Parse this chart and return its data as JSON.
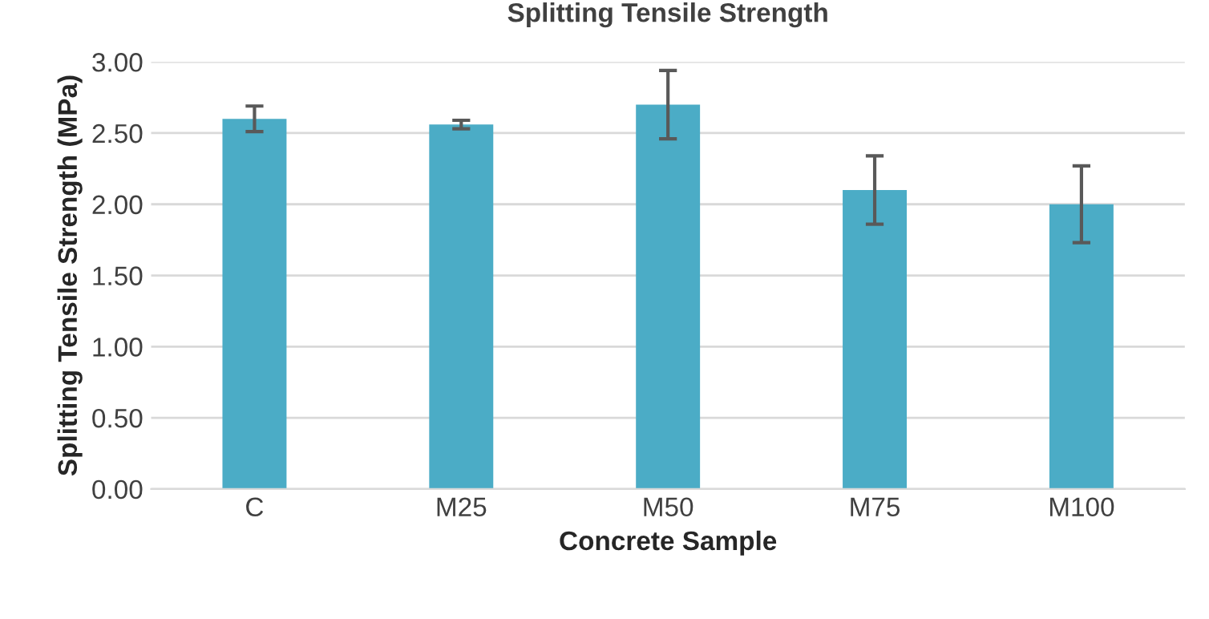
{
  "chart_data": {
    "type": "bar",
    "title": "Splitting Tensile Strength",
    "xlabel": "Concrete Sample",
    "ylabel": "Splitting Tensile Strength (MPa)",
    "categories": [
      "C",
      "M25",
      "M50",
      "M75",
      "M100"
    ],
    "values": [
      2.6,
      2.56,
      2.7,
      2.1,
      2.0
    ],
    "errors": [
      0.09,
      0.03,
      0.24,
      0.24,
      0.27
    ],
    "color": "#4bacc6",
    "ylim": [
      0,
      3
    ],
    "yticks": [
      {
        "value": 0,
        "label": "0.00"
      },
      {
        "value": 0.5,
        "label": "0.50"
      },
      {
        "value": 1,
        "label": "1.00"
      },
      {
        "value": 1.5,
        "label": "1.50"
      },
      {
        "value": 2,
        "label": "2.00"
      },
      {
        "value": 2.5,
        "label": "2.50"
      },
      {
        "value": 3,
        "label": "3.00"
      }
    ],
    "grid": "y"
  }
}
